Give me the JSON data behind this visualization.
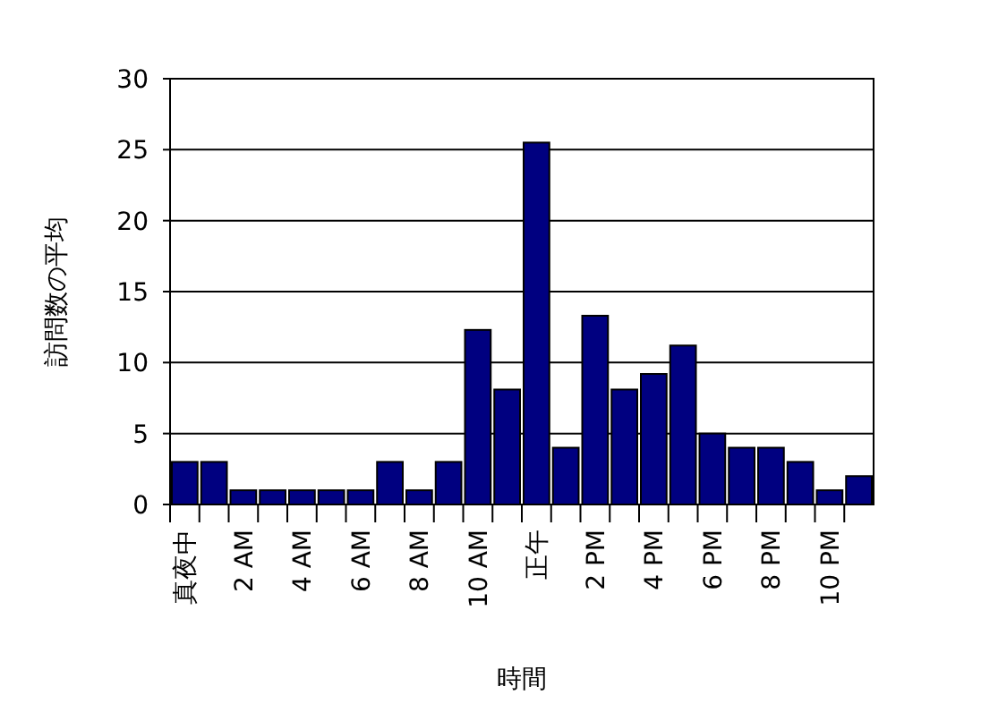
{
  "chart_data": {
    "type": "bar",
    "xlabel": "時間",
    "ylabel": "訪問数の平均",
    "categories": [
      "真夜中",
      null,
      "2 AM",
      null,
      "4 AM",
      null,
      "6 AM",
      null,
      "8 AM",
      null,
      "10 AM",
      null,
      "正午",
      null,
      "2 PM",
      null,
      "4 PM",
      null,
      "6 PM",
      null,
      "8 PM",
      null,
      "10 PM",
      null
    ],
    "values": [
      3,
      3,
      1,
      1,
      1,
      1,
      1,
      3,
      1,
      3,
      12.3,
      8.1,
      25.5,
      4,
      13.3,
      8.1,
      9.2,
      11.2,
      5,
      4,
      4,
      3,
      1,
      2
    ],
    "color": "#000080",
    "ylim": [
      0,
      30
    ],
    "yticks": [
      0,
      5,
      10,
      15,
      20,
      25,
      30
    ],
    "grid": "y"
  }
}
